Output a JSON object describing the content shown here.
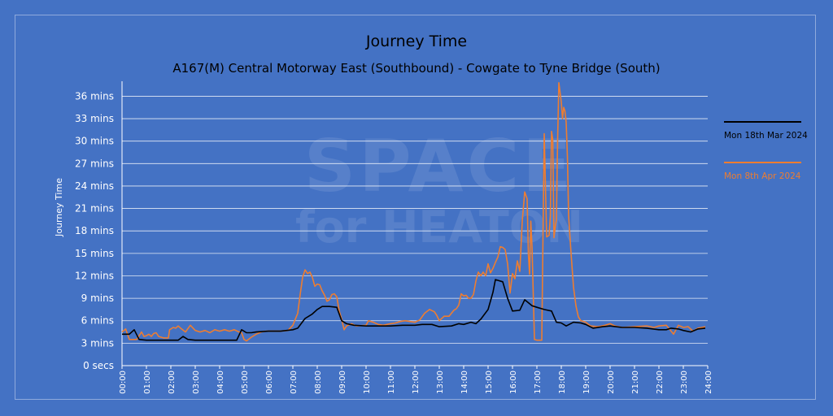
{
  "title": "Journey Time",
  "subtitle": "A167(M) Central Motorway East (Southbound) - Cowgate to Tyne Bridge (South)",
  "watermark": {
    "line1": "SPACE",
    "line2": "for HEATON"
  },
  "colors": {
    "background": "#4472c4",
    "series_black": "#000000",
    "series_orange": "#ed7d31",
    "grid": "#ffffff"
  },
  "chart_data": {
    "type": "line",
    "title": "Journey Time",
    "subtitle": "A167(M) Central Motorway East (Southbound) - Cowgate to Tyne Bridge (South)",
    "xlabel": "",
    "ylabel": "Journey Time",
    "xlim": [
      0,
      24
    ],
    "ylim": [
      0,
      38
    ],
    "x_ticks": [
      "00:00",
      "01:00",
      "02:00",
      "03:00",
      "04:00",
      "05:00",
      "06:00",
      "07:00",
      "08:00",
      "09:00",
      "10:00",
      "11:00",
      "12:00",
      "13:00",
      "14:00",
      "15:00",
      "16:00",
      "17:00",
      "18:00",
      "19:00",
      "20:00",
      "21:00",
      "22:00",
      "23:00",
      "24:00"
    ],
    "y_ticks": [
      0,
      3,
      6,
      9,
      12,
      15,
      18,
      21,
      24,
      27,
      30,
      33,
      36
    ],
    "y_tick_labels": [
      "0 secs",
      "3 mins",
      "6 mins",
      "9 mins",
      "12 mins",
      "15 mins",
      "18 mins",
      "21 mins",
      "24 mins",
      "27 mins",
      "30 mins",
      "33 mins",
      "36 mins"
    ],
    "grid": true,
    "legend_position": "right",
    "series": [
      {
        "name": "Mon 18th Mar 2024",
        "color": "#000000",
        "points": [
          [
            0,
            4.2
          ],
          [
            0.3,
            4.2
          ],
          [
            0.5,
            4.8
          ],
          [
            0.7,
            3.5
          ],
          [
            1,
            3.4
          ],
          [
            2,
            3.4
          ],
          [
            2.3,
            3.4
          ],
          [
            2.5,
            3.9
          ],
          [
            2.7,
            3.5
          ],
          [
            3,
            3.4
          ],
          [
            4,
            3.4
          ],
          [
            4.7,
            3.4
          ],
          [
            4.9,
            4.8
          ],
          [
            5.1,
            4.4
          ],
          [
            5.3,
            4.4
          ],
          [
            5.5,
            4.5
          ],
          [
            6,
            4.6
          ],
          [
            6.5,
            4.6
          ],
          [
            7,
            4.8
          ],
          [
            7.2,
            5.0
          ],
          [
            7.5,
            6.3
          ],
          [
            7.8,
            6.9
          ],
          [
            8.0,
            7.5
          ],
          [
            8.2,
            7.9
          ],
          [
            8.5,
            7.9
          ],
          [
            8.8,
            7.8
          ],
          [
            9.0,
            6.0
          ],
          [
            9.2,
            5.6
          ],
          [
            9.5,
            5.4
          ],
          [
            10,
            5.3
          ],
          [
            10.5,
            5.3
          ],
          [
            11,
            5.3
          ],
          [
            11.5,
            5.4
          ],
          [
            12,
            5.4
          ],
          [
            12.3,
            5.5
          ],
          [
            12.7,
            5.5
          ],
          [
            13,
            5.2
          ],
          [
            13.5,
            5.3
          ],
          [
            13.8,
            5.6
          ],
          [
            14.0,
            5.5
          ],
          [
            14.3,
            5.8
          ],
          [
            14.5,
            5.6
          ],
          [
            14.7,
            6.2
          ],
          [
            15.0,
            7.5
          ],
          [
            15.2,
            9.8
          ],
          [
            15.3,
            11.5
          ],
          [
            15.6,
            11.2
          ],
          [
            15.8,
            9.0
          ],
          [
            16.0,
            7.3
          ],
          [
            16.3,
            7.4
          ],
          [
            16.5,
            8.8
          ],
          [
            16.8,
            8.0
          ],
          [
            17.0,
            7.8
          ],
          [
            17.3,
            7.5
          ],
          [
            17.6,
            7.3
          ],
          [
            17.8,
            5.8
          ],
          [
            18.0,
            5.7
          ],
          [
            18.2,
            5.3
          ],
          [
            18.5,
            5.8
          ],
          [
            18.8,
            5.7
          ],
          [
            19.0,
            5.5
          ],
          [
            19.3,
            5.0
          ],
          [
            19.7,
            5.2
          ],
          [
            20,
            5.3
          ],
          [
            20.5,
            5.1
          ],
          [
            21,
            5.1
          ],
          [
            21.5,
            5.0
          ],
          [
            22,
            4.8
          ],
          [
            22.3,
            4.8
          ],
          [
            22.5,
            5.0
          ],
          [
            22.8,
            4.9
          ],
          [
            23.0,
            4.7
          ],
          [
            23.3,
            4.5
          ],
          [
            23.6,
            4.9
          ],
          [
            23.9,
            5.0
          ]
        ]
      },
      {
        "name": "Mon 8th Apr 2024",
        "color": "#ed7d31",
        "points": [
          [
            0,
            4.5
          ],
          [
            0.15,
            4.9
          ],
          [
            0.3,
            3.5
          ],
          [
            0.6,
            3.5
          ],
          [
            0.8,
            4.5
          ],
          [
            0.9,
            3.9
          ],
          [
            1.0,
            4.0
          ],
          [
            1.1,
            4.2
          ],
          [
            1.2,
            3.9
          ],
          [
            1.3,
            4.3
          ],
          [
            1.4,
            4.4
          ],
          [
            1.5,
            3.9
          ],
          [
            1.7,
            3.7
          ],
          [
            1.9,
            3.7
          ],
          [
            1.95,
            4.8
          ],
          [
            2.1,
            5.1
          ],
          [
            2.2,
            5.0
          ],
          [
            2.3,
            5.3
          ],
          [
            2.4,
            5.0
          ],
          [
            2.6,
            4.5
          ],
          [
            2.8,
            5.4
          ],
          [
            3.0,
            4.7
          ],
          [
            3.2,
            4.5
          ],
          [
            3.4,
            4.7
          ],
          [
            3.6,
            4.4
          ],
          [
            3.8,
            4.8
          ],
          [
            4.0,
            4.6
          ],
          [
            4.2,
            4.8
          ],
          [
            4.4,
            4.6
          ],
          [
            4.6,
            4.8
          ],
          [
            4.8,
            4.5
          ],
          [
            4.9,
            4.4
          ],
          [
            5.0,
            3.5
          ],
          [
            5.1,
            3.3
          ],
          [
            5.3,
            3.8
          ],
          [
            5.5,
            4.2
          ],
          [
            5.7,
            4.5
          ],
          [
            5.9,
            4.6
          ],
          [
            6.2,
            4.6
          ],
          [
            6.5,
            4.6
          ],
          [
            6.8,
            4.7
          ],
          [
            7.0,
            5.4
          ],
          [
            7.2,
            7.0
          ],
          [
            7.3,
            9.5
          ],
          [
            7.4,
            11.8
          ],
          [
            7.5,
            12.8
          ],
          [
            7.6,
            12.3
          ],
          [
            7.7,
            12.5
          ],
          [
            7.8,
            11.8
          ],
          [
            7.9,
            10.6
          ],
          [
            8.0,
            10.9
          ],
          [
            8.1,
            10.8
          ],
          [
            8.2,
            10.0
          ],
          [
            8.3,
            9.4
          ],
          [
            8.4,
            8.6
          ],
          [
            8.5,
            8.8
          ],
          [
            8.6,
            9.5
          ],
          [
            8.7,
            9.6
          ],
          [
            8.8,
            9.2
          ],
          [
            8.9,
            7.3
          ],
          [
            9.0,
            6.2
          ],
          [
            9.1,
            4.8
          ],
          [
            9.2,
            5.3
          ],
          [
            9.4,
            5.6
          ],
          [
            9.6,
            5.3
          ],
          [
            10,
            5.4
          ],
          [
            10.1,
            6.0
          ],
          [
            10.3,
            5.8
          ],
          [
            10.5,
            5.5
          ],
          [
            10.7,
            5.4
          ],
          [
            11,
            5.6
          ],
          [
            11.2,
            5.7
          ],
          [
            11.4,
            5.9
          ],
          [
            11.6,
            6.0
          ],
          [
            11.8,
            5.9
          ],
          [
            12,
            5.8
          ],
          [
            12.2,
            6.1
          ],
          [
            12.4,
            7.0
          ],
          [
            12.6,
            7.5
          ],
          [
            12.8,
            7.2
          ],
          [
            12.9,
            6.7
          ],
          [
            13.0,
            6.0
          ],
          [
            13.2,
            6.6
          ],
          [
            13.4,
            6.6
          ],
          [
            13.6,
            7.4
          ],
          [
            13.7,
            7.6
          ],
          [
            13.8,
            8.1
          ],
          [
            13.9,
            9.6
          ],
          [
            14.0,
            9.3
          ],
          [
            14.1,
            9.4
          ],
          [
            14.2,
            9.0
          ],
          [
            14.3,
            9.0
          ],
          [
            14.4,
            9.5
          ],
          [
            14.5,
            11.3
          ],
          [
            14.6,
            12.5
          ],
          [
            14.7,
            12.0
          ],
          [
            14.8,
            12.5
          ],
          [
            14.9,
            12.0
          ],
          [
            15.0,
            13.6
          ],
          [
            15.1,
            12.4
          ],
          [
            15.2,
            13.0
          ],
          [
            15.3,
            13.8
          ],
          [
            15.4,
            14.5
          ],
          [
            15.5,
            15.9
          ],
          [
            15.6,
            15.8
          ],
          [
            15.7,
            15.5
          ],
          [
            15.8,
            13.6
          ],
          [
            15.9,
            9.7
          ],
          [
            16.0,
            12.3
          ],
          [
            16.1,
            11.6
          ],
          [
            16.2,
            14.0
          ],
          [
            16.3,
            12.6
          ],
          [
            16.4,
            19.3
          ],
          [
            16.5,
            23.2
          ],
          [
            16.6,
            22.3
          ],
          [
            16.65,
            15.0
          ],
          [
            16.7,
            12.2
          ],
          [
            16.75,
            19.3
          ],
          [
            16.8,
            15.9
          ],
          [
            16.9,
            3.5
          ],
          [
            17.0,
            3.4
          ],
          [
            17.2,
            3.4
          ],
          [
            17.3,
            31.0
          ],
          [
            17.4,
            17.2
          ],
          [
            17.5,
            17.4
          ],
          [
            17.55,
            20.0
          ],
          [
            17.6,
            31.3
          ],
          [
            17.65,
            30.2
          ],
          [
            17.7,
            17.1
          ],
          [
            17.75,
            18.5
          ],
          [
            17.8,
            19.5
          ],
          [
            17.85,
            30.3
          ],
          [
            17.9,
            37.8
          ],
          [
            18.0,
            35.2
          ],
          [
            18.05,
            33.0
          ],
          [
            18.1,
            34.5
          ],
          [
            18.15,
            34.0
          ],
          [
            18.2,
            32.5
          ],
          [
            18.25,
            28.0
          ],
          [
            18.3,
            20.0
          ],
          [
            18.4,
            15.0
          ],
          [
            18.5,
            10.5
          ],
          [
            18.6,
            8.0
          ],
          [
            18.7,
            6.5
          ],
          [
            18.8,
            6.0
          ],
          [
            19.0,
            5.8
          ],
          [
            19.2,
            5.3
          ],
          [
            19.5,
            5.2
          ],
          [
            19.8,
            5.4
          ],
          [
            20.0,
            5.6
          ],
          [
            20.2,
            5.3
          ],
          [
            20.5,
            5.1
          ],
          [
            21,
            5.2
          ],
          [
            21.5,
            5.3
          ],
          [
            21.8,
            5.1
          ],
          [
            22,
            5.3
          ],
          [
            22.3,
            5.4
          ],
          [
            22.6,
            4.2
          ],
          [
            22.8,
            5.4
          ],
          [
            23.0,
            5.1
          ],
          [
            23.2,
            5.2
          ],
          [
            23.4,
            4.6
          ],
          [
            23.6,
            5.0
          ],
          [
            23.9,
            5.2
          ]
        ]
      }
    ]
  }
}
